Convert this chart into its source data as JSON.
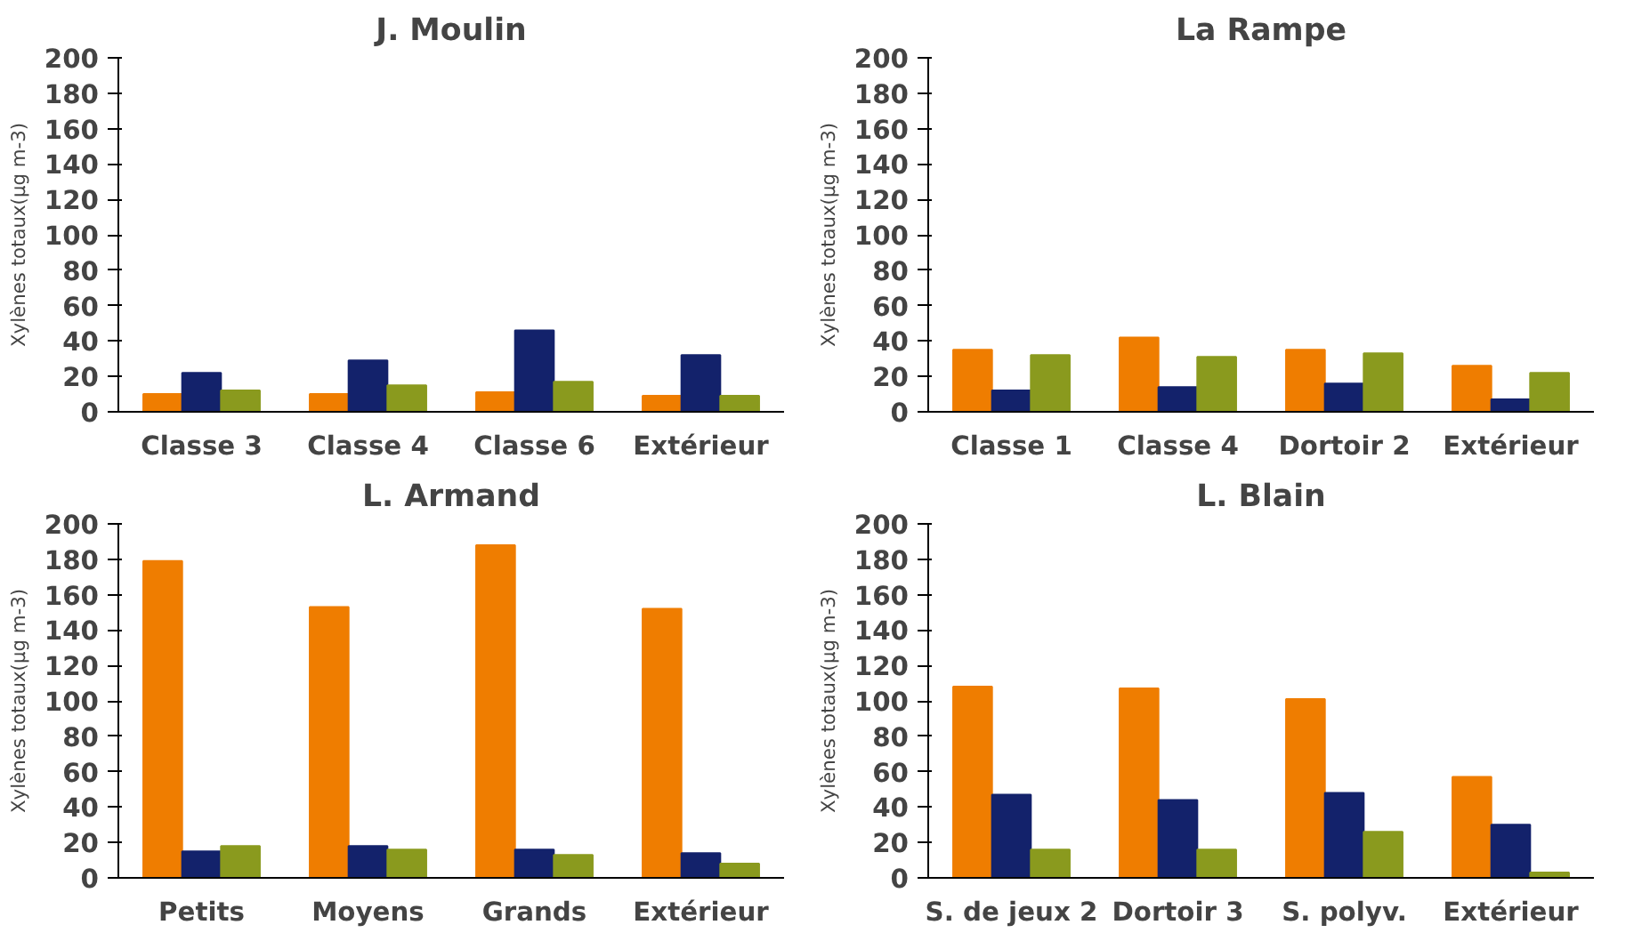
{
  "chart_data": [
    {
      "type": "bar",
      "title": "J. Moulin",
      "ylabel": "Xylènes totaux(µg m-3)",
      "categories": [
        "Classe 3",
        "Classe 4",
        "Classe 6",
        "Extérieur"
      ],
      "ylim": [
        0,
        200
      ],
      "yticks": [
        0,
        20,
        40,
        60,
        80,
        100,
        120,
        140,
        160,
        180,
        200
      ],
      "grid": false,
      "series": [
        {
          "color": "#ef7d00",
          "values": [
            10,
            10,
            11,
            9
          ]
        },
        {
          "color": "#13226b",
          "values": [
            22,
            29,
            46,
            32
          ]
        },
        {
          "color": "#8a9a1e",
          "values": [
            12,
            15,
            17,
            9
          ]
        }
      ]
    },
    {
      "type": "bar",
      "title": "La Rampe",
      "ylabel": "Xylènes totaux(µg m-3)",
      "categories": [
        "Classe 1",
        "Classe 4",
        "Dortoir 2",
        "Extérieur"
      ],
      "ylim": [
        0,
        200
      ],
      "yticks": [
        0,
        20,
        40,
        60,
        80,
        100,
        120,
        140,
        160,
        180,
        200
      ],
      "grid": false,
      "series": [
        {
          "color": "#ef7d00",
          "values": [
            35,
            42,
            35,
            26
          ]
        },
        {
          "color": "#13226b",
          "values": [
            12,
            14,
            16,
            7
          ]
        },
        {
          "color": "#8a9a1e",
          "values": [
            32,
            31,
            33,
            22
          ]
        }
      ]
    },
    {
      "type": "bar",
      "title": "L. Armand",
      "ylabel": "Xylènes totaux(µg m-3)",
      "categories": [
        "Petits",
        "Moyens",
        "Grands",
        "Extérieur"
      ],
      "ylim": [
        0,
        200
      ],
      "yticks": [
        0,
        20,
        40,
        60,
        80,
        100,
        120,
        140,
        160,
        180,
        200
      ],
      "grid": false,
      "series": [
        {
          "color": "#ef7d00",
          "values": [
            179,
            153,
            188,
            152
          ]
        },
        {
          "color": "#13226b",
          "values": [
            15,
            18,
            16,
            14
          ]
        },
        {
          "color": "#8a9a1e",
          "values": [
            18,
            16,
            13,
            8
          ]
        }
      ]
    },
    {
      "type": "bar",
      "title": "L. Blain",
      "ylabel": "Xylènes totaux(µg m-3)",
      "categories": [
        "S. de jeux 2",
        "Dortoir 3",
        "S. polyv.",
        "Extérieur"
      ],
      "ylim": [
        0,
        200
      ],
      "yticks": [
        0,
        20,
        40,
        60,
        80,
        100,
        120,
        140,
        160,
        180,
        200
      ],
      "grid": false,
      "series": [
        {
          "color": "#ef7d00",
          "values": [
            108,
            107,
            101,
            57
          ]
        },
        {
          "color": "#13226b",
          "values": [
            47,
            44,
            48,
            30
          ]
        },
        {
          "color": "#8a9a1e",
          "values": [
            16,
            16,
            26,
            3
          ]
        }
      ]
    }
  ]
}
